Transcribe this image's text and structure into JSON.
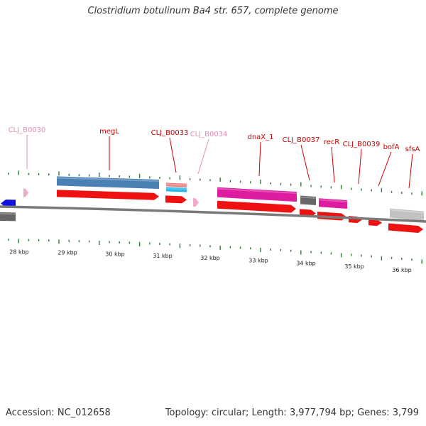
{
  "title": "Clostridium botulinum Ba4 str. 657, complete genome",
  "footer": {
    "accession_label": "Accession:",
    "accession": "NC_012658",
    "topology_label": "Topology:",
    "topology": "circular",
    "length_label": "Length:",
    "length": "3,977,794 bp",
    "genes_label": "Genes:",
    "genes": "3,799"
  },
  "colors": {
    "backbone": "#7a7a7a",
    "tick": "#2e7d32",
    "gene_label": "#cc0000",
    "gene_label_faded": "#e48bb4",
    "cds": "#ee1111",
    "steel_blue": "#4a80b4",
    "salmon": "#ee7f7f",
    "cyan": "#29b4e6",
    "pink": "#f2a8c8",
    "magenta": "#dd1ca0",
    "dark_gray": "#666666",
    "light_gray": "#c2c2c2",
    "blue": "#1111dd"
  },
  "ruler": {
    "unit": "kbp",
    "ticks": [
      "28 kbp",
      "29 kbp",
      "30 kbp",
      "31 kbp",
      "32 kbp",
      "33 kbp",
      "34 kbp",
      "35 kbp",
      "36 kbp"
    ]
  },
  "gene_labels": [
    {
      "name": "CLJ_B0030",
      "faded": true
    },
    {
      "name": "megL",
      "faded": false
    },
    {
      "name": "CLJ_B0033",
      "faded": false
    },
    {
      "name": "CLJ_B0034",
      "faded": true
    },
    {
      "name": "dnaX_1",
      "faded": false
    },
    {
      "name": "CLJ_B0037",
      "faded": false
    },
    {
      "name": "recR",
      "faded": false
    },
    {
      "name": "CLJ_B0039",
      "faded": false
    },
    {
      "name": "bofA",
      "faded": false
    },
    {
      "name": "sfsA",
      "faded": false
    }
  ]
}
